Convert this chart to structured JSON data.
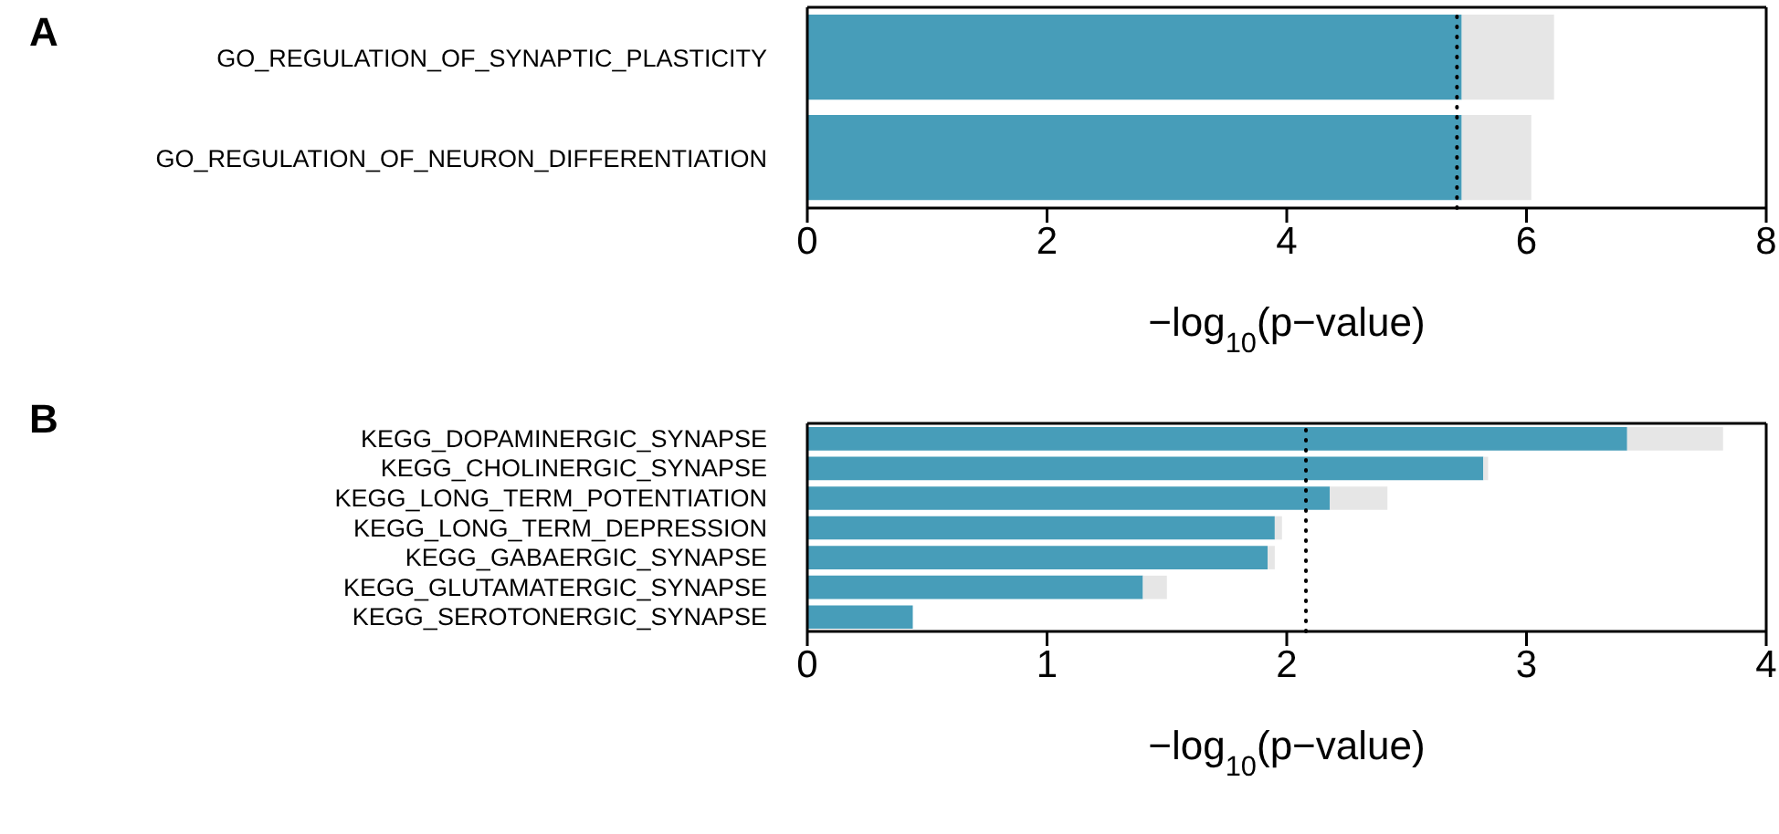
{
  "chart_data": [
    {
      "type": "bar",
      "orientation": "horizontal",
      "annotations": [
        "A"
      ],
      "categories": [
        "GO_REGULATION_OF_SYNAPTIC_PLASTICITY",
        "GO_REGULATION_OF_NEURON_DIFFERENTIATION"
      ],
      "series": [
        {
          "color": "#479db9",
          "values": [
            5.46,
            5.46
          ]
        },
        {
          "color": "#e6e6e6",
          "values": [
            0.77,
            0.58
          ]
        }
      ],
      "stacked": true,
      "xlim": [
        0,
        8
      ],
      "xticks": [
        0,
        2,
        4,
        6,
        8
      ],
      "xlabel": "−log$_{10}$(p−value)",
      "grid": false,
      "legend": false,
      "ref_lines": [
        {
          "axis": "x",
          "value": 5.42,
          "color": "#000000",
          "line_style": "dotted"
        }
      ]
    },
    {
      "type": "bar",
      "orientation": "horizontal",
      "annotations": [
        "B"
      ],
      "categories": [
        "KEGG_DOPAMINERGIC_SYNAPSE",
        "KEGG_CHOLINERGIC_SYNAPSE",
        "KEGG_LONG_TERM_POTENTIATION",
        "KEGG_LONG_TERM_DEPRESSION",
        "KEGG_GABAERGIC_SYNAPSE",
        "KEGG_GLUTAMATERGIC_SYNAPSE",
        "KEGG_SEROTONERGIC_SYNAPSE"
      ],
      "series": [
        {
          "color": "#479db9",
          "values": [
            3.42,
            2.82,
            2.18,
            1.95,
            1.92,
            1.4,
            0.44
          ]
        },
        {
          "color": "#e6e6e6",
          "values": [
            0.4,
            0.02,
            0.24,
            0.03,
            0.03,
            0.1,
            null
          ]
        }
      ],
      "stacked": true,
      "xlim": [
        0,
        4
      ],
      "xticks": [
        0,
        1,
        2,
        3,
        4
      ],
      "xlabel": "−log$_{10}$(p−value)",
      "grid": false,
      "legend": false,
      "ref_lines": [
        {
          "axis": "x",
          "value": 2.08,
          "color": "#000000",
          "line_style": "dotted"
        }
      ]
    }
  ]
}
